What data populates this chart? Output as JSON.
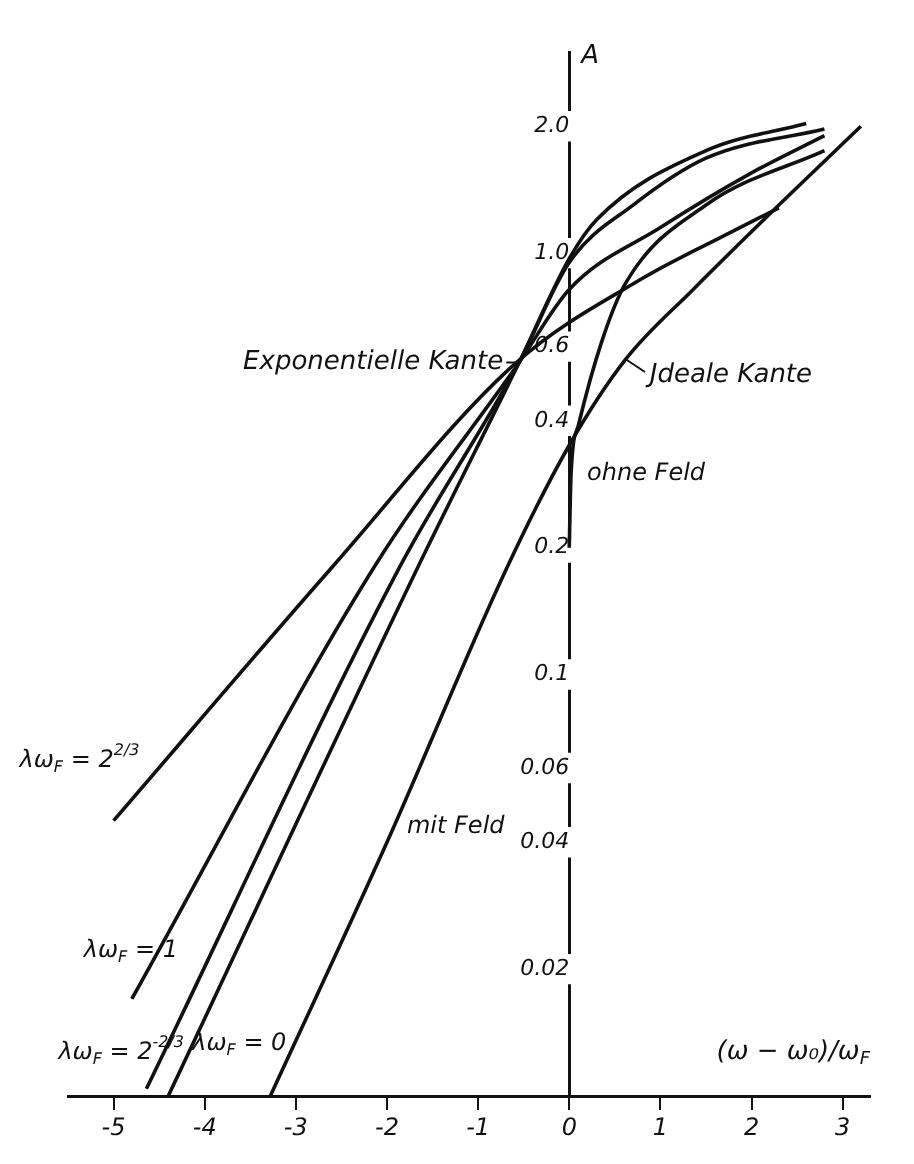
{
  "chart_data": {
    "type": "line",
    "ylabel": "A",
    "xlabel": "(ω − ω₀)/ω$_{F}$",
    "xlim": [
      -5.5,
      3.3
    ],
    "xticks": [
      -5,
      -4,
      -3,
      -2,
      -1,
      0,
      1,
      2,
      3
    ],
    "ylim": [
      0.01,
      3
    ],
    "log": "y",
    "yticks": [
      {
        "value": 0.02,
        "label": "0.02"
      },
      {
        "value": 0.04,
        "label": "0.04"
      },
      {
        "value": 0.06,
        "label": "0.06"
      },
      {
        "value": 0.1,
        "label": "0.1"
      },
      {
        "value": 0.2,
        "label": "0.2"
      },
      {
        "value": 0.4,
        "label": "0.4"
      },
      {
        "value": 0.6,
        "label": "0.6"
      },
      {
        "value": 1,
        "label": "1.0"
      },
      {
        "value": 2,
        "label": "2.0"
      }
    ],
    "grid": false,
    "legend": false,
    "marker": "none",
    "line_style": "solid",
    "series": [
      {
        "name": "λω$_{F}$ = 2$^{2/3}$",
        "color": "#111111",
        "x": [
          -5,
          -2.6,
          -0.58,
          0.8,
          1.7,
          2.3
        ],
        "values": [
          0.045,
          0.18,
          0.55,
          0.87,
          1.1,
          1.28
        ]
      },
      {
        "name": "λω$_{F}$ = 1",
        "color": "#111111",
        "x": [
          -4.8,
          -2.14,
          -0.55,
          0,
          1,
          2,
          2.8
        ],
        "values": [
          0.017,
          0.18,
          0.55,
          0.82,
          1.15,
          1.55,
          1.9
        ]
      },
      {
        "name": "λω$_{F}$ = 2$^{-2/3}$",
        "color": "#111111",
        "x": [
          -4.64,
          -1.86,
          -0.55,
          0,
          0.7,
          1.5,
          2.8
        ],
        "values": [
          0.0104,
          0.18,
          0.55,
          0.95,
          1.3,
          1.68,
          1.97
        ]
      },
      {
        "name": "λω$_{F}$ = 0",
        "color": "#111111",
        "x": [
          -4.4,
          -1.66,
          -0.55,
          0,
          0.3,
          1.5,
          2.6
        ],
        "values": [
          0.01,
          0.18,
          0.55,
          0.97,
          1.2,
          1.75,
          2.03
        ]
      },
      {
        "name": "mit Feld",
        "color": "#111111",
        "x": [
          -3.28,
          -2,
          -0.68,
          0,
          0.62,
          1.36,
          2.3,
          3.2
        ],
        "values": [
          0.01,
          0.04,
          0.18,
          0.35,
          0.56,
          0.82,
          1.3,
          2.0
        ]
      },
      {
        "name": "ohne Feld",
        "color": "#111111",
        "x": [
          0,
          0.02,
          0.1,
          0.36,
          0.62,
          1.5,
          2.8
        ],
        "values": [
          0.2,
          0.3,
          0.39,
          0.62,
          0.85,
          1.3,
          1.75
        ]
      }
    ],
    "annotations": [
      {
        "text": "Exponentielle Kante",
        "x": -0.55,
        "y": 0.55
      },
      {
        "text": "Jdeale Kante",
        "x": 0.62,
        "y": 0.56
      }
    ]
  }
}
